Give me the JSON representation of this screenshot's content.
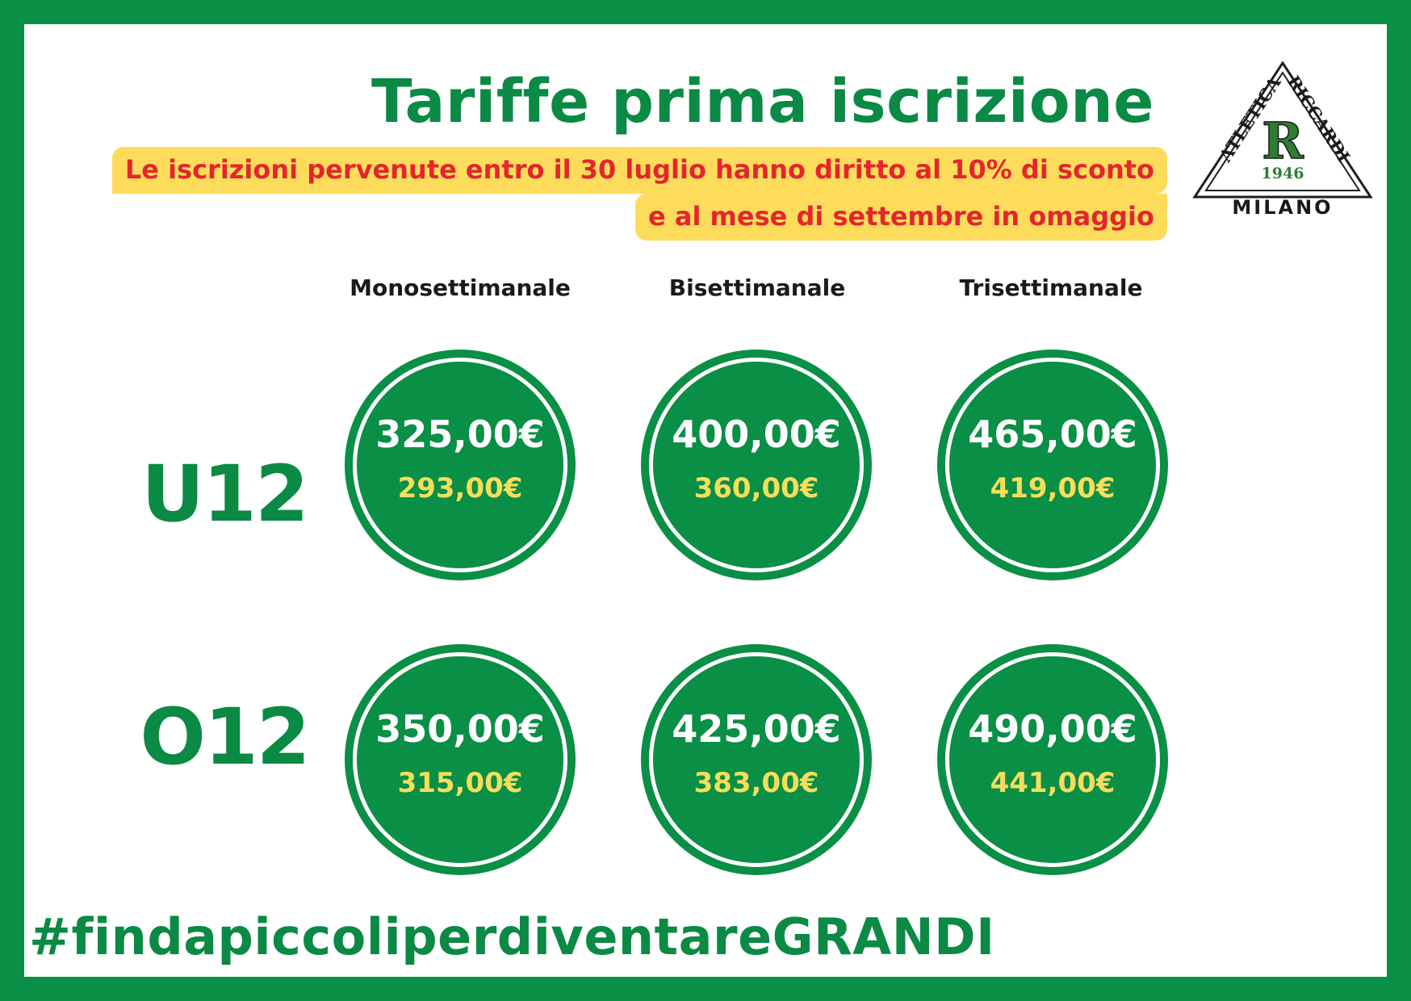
{
  "colors": {
    "brand_green": "#0a8f46",
    "promo_background": "#fddc5c",
    "promo_text": "#e3262d",
    "discount_text": "#f6de5a"
  },
  "title": "Tariffe prima iscrizione",
  "promo": {
    "line1": "Le iscrizioni pervenute entro il 30 luglio hanno diritto al 10% di sconto",
    "line2": "e al mese di settembre in omaggio"
  },
  "logo": {
    "top_arc_left": "ATLETICA",
    "top_arc_right": "RICCARDI",
    "letter": "R",
    "year": "1946",
    "city": "MILANO"
  },
  "columns": [
    "Monosettimanale",
    "Bisettimanale",
    "Trisettimanale"
  ],
  "rows": [
    {
      "label": "U12",
      "prices": [
        {
          "full": "325,00€",
          "discounted": "293,00€"
        },
        {
          "full": "400,00€",
          "discounted": "360,00€"
        },
        {
          "full": "465,00€",
          "discounted": "419,00€"
        }
      ]
    },
    {
      "label": "O12",
      "prices": [
        {
          "full": "350,00€",
          "discounted": "315,00€"
        },
        {
          "full": "425,00€",
          "discounted": "383,00€"
        },
        {
          "full": "490,00€",
          "discounted": "441,00€"
        }
      ]
    }
  ],
  "hashtag": "#findapiccoliperdiventareGRANDI"
}
